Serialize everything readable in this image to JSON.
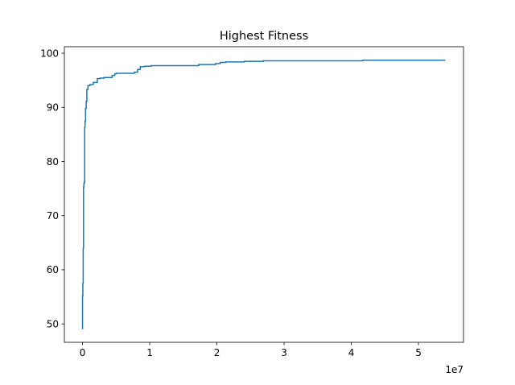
{
  "chart_data": {
    "type": "line",
    "title": "Highest Fitness",
    "xlabel": "",
    "ylabel": "",
    "x_offset_label": "1e7",
    "x_multiplier": 10000000,
    "xlim": [
      -2700000,
      56700000
    ],
    "ylim": [
      46.6,
      101.2
    ],
    "xticks": [
      0,
      1,
      2,
      3,
      4,
      5
    ],
    "yticks": [
      50,
      60,
      70,
      80,
      90,
      100
    ],
    "grid": false,
    "line_color": "#1f77b4",
    "series": [
      {
        "x": [
          0,
          0,
          50000,
          50000,
          100000,
          100000,
          150000,
          150000,
          200000,
          200000,
          260000,
          260000,
          320000,
          320000,
          380000,
          380000,
          450000,
          450000,
          550000,
          550000,
          650000,
          650000,
          800000,
          800000,
          1100000,
          1100000,
          1600000,
          1600000,
          2200000,
          2200000,
          2600000,
          2600000,
          3200000,
          3200000,
          4400000,
          4400000,
          4800000,
          4800000,
          5000000,
          5000000,
          7700000,
          7700000,
          8200000,
          8200000,
          8600000,
          8600000,
          9200000,
          9200000,
          10200000,
          10200000,
          17300000,
          17300000,
          19800000,
          19800000,
          20500000,
          20500000,
          21300000,
          21300000,
          24100000,
          24100000,
          26900000,
          26900000,
          41700000,
          41700000,
          54000000
        ],
        "y": [
          49.0,
          55.2,
          55.2,
          57.5,
          57.5,
          64.0,
          64.0,
          75.3,
          75.3,
          75.9,
          75.9,
          76.2,
          76.2,
          86.3,
          86.3,
          87.4,
          87.4,
          89.8,
          89.8,
          91.1,
          91.1,
          93.3,
          93.3,
          94.0,
          94.0,
          94.2,
          94.2,
          94.6,
          94.6,
          95.3,
          95.3,
          95.4,
          95.4,
          95.5,
          95.5,
          95.9,
          95.9,
          96.2,
          96.2,
          96.3,
          96.3,
          96.5,
          96.5,
          97.0,
          97.0,
          97.5,
          97.5,
          97.6,
          97.6,
          97.7,
          97.7,
          97.9,
          97.9,
          98.1,
          98.1,
          98.3,
          98.3,
          98.4,
          98.4,
          98.5,
          98.5,
          98.6,
          98.6,
          98.7,
          98.7
        ]
      }
    ]
  }
}
